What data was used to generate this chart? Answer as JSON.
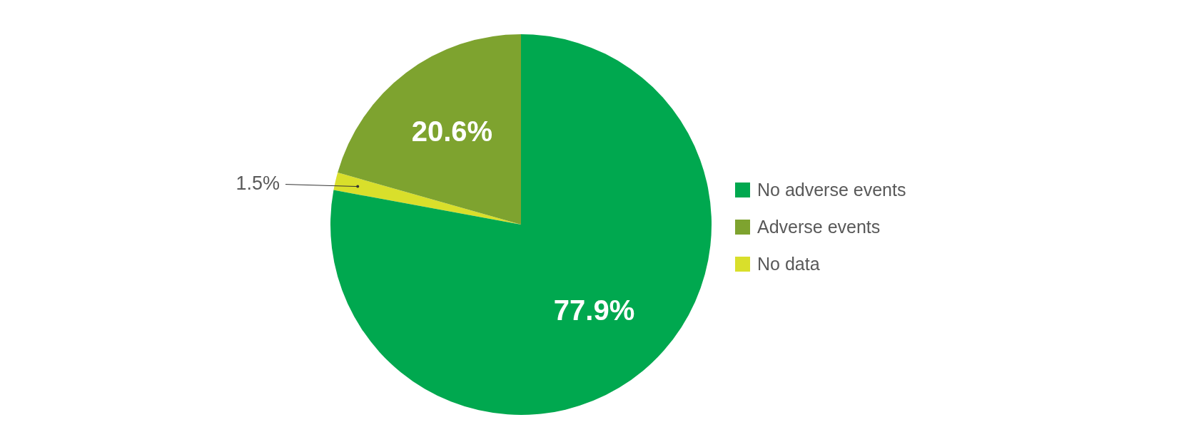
{
  "chart_data": {
    "type": "pie",
    "categories": [
      "No adverse events",
      "Adverse events",
      "No data"
    ],
    "values": [
      77.9,
      20.6,
      1.5
    ],
    "colors": [
      "#00a84f",
      "#7ea32f",
      "#d9df2b"
    ],
    "value_labels": [
      "77.9%",
      "20.6%",
      "1.5%"
    ],
    "legend": "right"
  }
}
